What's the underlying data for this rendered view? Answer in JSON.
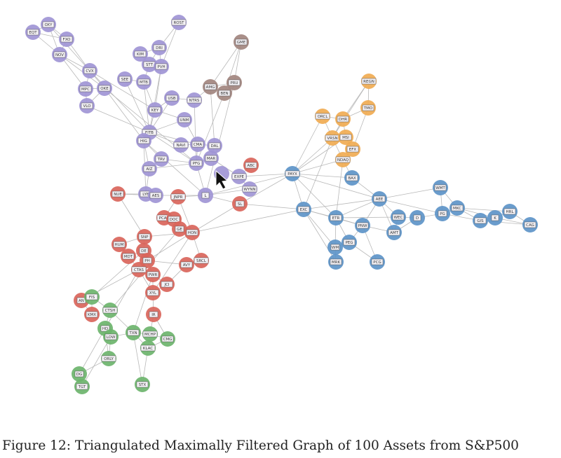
{
  "caption": "Figure 12: Triangulated Maximally Filtered Graph of 100 Assets from S&P500",
  "group_colors": {
    "purple": "#a095d5",
    "brown": "#a2857f",
    "red": "#d9655b",
    "green": "#6cb46c",
    "orange": "#f0ab52",
    "blue": "#5d94c8"
  },
  "edge_color": "#b8b8b8",
  "nodes": [
    {
      "label": "EQT",
      "group": "purple"
    },
    {
      "label": "OXY",
      "group": "purple"
    },
    {
      "label": "FXO",
      "group": "purple"
    },
    {
      "label": "NOV",
      "group": "purple"
    },
    {
      "label": "CVX",
      "group": "purple"
    },
    {
      "label": "MPC",
      "group": "purple"
    },
    {
      "label": "OKE",
      "group": "purple"
    },
    {
      "label": "VLO",
      "group": "purple"
    },
    {
      "label": "ROST",
      "group": "purple"
    },
    {
      "label": "DRI",
      "group": "purple"
    },
    {
      "label": "KIM",
      "group": "purple"
    },
    {
      "label": "STT",
      "group": "purple"
    },
    {
      "label": "PVH",
      "group": "purple"
    },
    {
      "label": "SEE",
      "group": "purple"
    },
    {
      "label": "MTB",
      "group": "purple"
    },
    {
      "label": "USB",
      "group": "purple"
    },
    {
      "label": "NTRS",
      "group": "purple"
    },
    {
      "label": "KEY",
      "group": "purple"
    },
    {
      "label": "UNM",
      "group": "purple"
    },
    {
      "label": "FITB",
      "group": "purple"
    },
    {
      "label": "HIG",
      "group": "purple"
    },
    {
      "label": "NAVI",
      "group": "purple"
    },
    {
      "label": "CMA",
      "group": "purple"
    },
    {
      "label": "DAL",
      "group": "purple"
    },
    {
      "label": "TRV",
      "group": "purple"
    },
    {
      "label": "MAR",
      "group": "purple"
    },
    {
      "label": "PFG",
      "group": "purple"
    },
    {
      "label": "AIZ",
      "group": "purple"
    },
    {
      "label": "EXPE",
      "group": "purple"
    },
    {
      "label": "WYNN",
      "group": "purple"
    },
    {
      "label": "L",
      "group": "purple"
    },
    {
      "label": "LYB",
      "group": "purple"
    },
    {
      "label": "AES",
      "group": "purple"
    },
    {
      "label": "",
      "group": "purple"
    },
    {
      "label": "GME",
      "group": "brown"
    },
    {
      "label": "AMG",
      "group": "brown"
    },
    {
      "label": "PRU",
      "group": "brown"
    },
    {
      "label": "BEN",
      "group": "brown"
    },
    {
      "label": "ABC",
      "group": "red"
    },
    {
      "label": "SL",
      "group": "red"
    },
    {
      "label": "NUE",
      "group": "red"
    },
    {
      "label": "JNPR",
      "group": "red"
    },
    {
      "label": "PCAR",
      "group": "red"
    },
    {
      "label": "DOC",
      "group": "red"
    },
    {
      "label": "GE",
      "group": "red"
    },
    {
      "label": "HON",
      "group": "red"
    },
    {
      "label": "SNP",
      "group": "red"
    },
    {
      "label": "HUM",
      "group": "red"
    },
    {
      "label": "DE",
      "group": "red"
    },
    {
      "label": "MDT",
      "group": "red"
    },
    {
      "label": "PH",
      "group": "red"
    },
    {
      "label": "CTAS",
      "group": "red"
    },
    {
      "label": "PWR",
      "group": "red"
    },
    {
      "label": "AVY",
      "group": "red"
    },
    {
      "label": "SRCL",
      "group": "red"
    },
    {
      "label": "JCI",
      "group": "red"
    },
    {
      "label": "XYL",
      "group": "red"
    },
    {
      "label": "IR",
      "group": "red"
    },
    {
      "label": "AN",
      "group": "red"
    },
    {
      "label": "KMX",
      "group": "red"
    },
    {
      "label": "FIS",
      "group": "green"
    },
    {
      "label": "CTSH",
      "group": "green"
    },
    {
      "label": "HD",
      "group": "green"
    },
    {
      "label": "LOW",
      "group": "green"
    },
    {
      "label": "TXN",
      "group": "green"
    },
    {
      "label": "MCHP",
      "group": "green"
    },
    {
      "label": "KLAC",
      "group": "green"
    },
    {
      "label": "CMG",
      "group": "green"
    },
    {
      "label": "ORLY",
      "group": "green"
    },
    {
      "label": "DG",
      "group": "green"
    },
    {
      "label": "TGT",
      "group": "green"
    },
    {
      "label": "STX",
      "group": "green"
    },
    {
      "label": "REGN",
      "group": "orange"
    },
    {
      "label": "TMO",
      "group": "orange"
    },
    {
      "label": "ORCL",
      "group": "orange"
    },
    {
      "label": "DHR",
      "group": "orange"
    },
    {
      "label": "VRSN",
      "group": "orange"
    },
    {
      "label": "MSI",
      "group": "orange"
    },
    {
      "label": "EFX",
      "group": "orange"
    },
    {
      "label": "NDAQ",
      "group": "orange"
    },
    {
      "label": "PAYX",
      "group": "blue"
    },
    {
      "label": "BAX",
      "group": "blue"
    },
    {
      "label": "AEE",
      "group": "blue"
    },
    {
      "label": "EXC",
      "group": "blue"
    },
    {
      "label": "ETR",
      "group": "blue"
    },
    {
      "label": "PNW",
      "group": "blue"
    },
    {
      "label": "WEC",
      "group": "blue"
    },
    {
      "label": "D",
      "group": "blue"
    },
    {
      "label": "AMT",
      "group": "blue"
    },
    {
      "label": "PEG",
      "group": "blue"
    },
    {
      "label": "WM",
      "group": "blue"
    },
    {
      "label": "MRK",
      "group": "blue"
    },
    {
      "label": "PCG",
      "group": "blue"
    },
    {
      "label": "WMT",
      "group": "blue"
    },
    {
      "label": "PG",
      "group": "blue"
    },
    {
      "label": "MKC",
      "group": "blue"
    },
    {
      "label": "GIS",
      "group": "blue"
    },
    {
      "label": "K",
      "group": "blue"
    },
    {
      "label": "HRL",
      "group": "blue"
    },
    {
      "label": "CAG",
      "group": "blue"
    }
  ],
  "edges": [
    [
      "EQT",
      "OXY"
    ],
    [
      "EQT",
      "FXO"
    ],
    [
      "EQT",
      "NOV"
    ],
    [
      "OXY",
      "FXO"
    ],
    [
      "OXY",
      "NOV"
    ],
    [
      "OXY",
      "CVX"
    ],
    [
      "FXO",
      "NOV"
    ],
    [
      "FXO",
      "CVX"
    ],
    [
      "NOV",
      "CVX"
    ],
    [
      "NOV",
      "MPC"
    ],
    [
      "NOV",
      "OKE"
    ],
    [
      "CVX",
      "MPC"
    ],
    [
      "CVX",
      "OKE"
    ],
    [
      "CVX",
      "FITB"
    ],
    [
      "MPC",
      "OKE"
    ],
    [
      "MPC",
      "VLO"
    ],
    [
      "OKE",
      "VLO"
    ],
    [
      "OKE",
      "HIG"
    ],
    [
      "OKE",
      "PFG"
    ],
    [
      "VLO",
      "FITB"
    ],
    [
      "CVX",
      "KEY"
    ],
    [
      "ROST",
      "DRI"
    ],
    [
      "ROST",
      "PVH"
    ],
    [
      "DRI",
      "KIM"
    ],
    [
      "DRI",
      "STT"
    ],
    [
      "DRI",
      "PVH"
    ],
    [
      "KIM",
      "STT"
    ],
    [
      "STT",
      "PVH"
    ],
    [
      "STT",
      "MTB"
    ],
    [
      "PVH",
      "KEY"
    ],
    [
      "PVH",
      "FITB"
    ],
    [
      "SEE",
      "MTB"
    ],
    [
      "SEE",
      "FITB"
    ],
    [
      "MTB",
      "KEY"
    ],
    [
      "MTB",
      "FITB"
    ],
    [
      "USB",
      "KEY"
    ],
    [
      "USB",
      "NTRS"
    ],
    [
      "USB",
      "FITB"
    ],
    [
      "NTRS",
      "AMG"
    ],
    [
      "NTRS",
      "PFG"
    ],
    [
      "KEY",
      "FITB"
    ],
    [
      "KEY",
      "UNM"
    ],
    [
      "UNM",
      "CMA"
    ],
    [
      "UNM",
      "FITB"
    ],
    [
      "FITB",
      "HIG"
    ],
    [
      "FITB",
      "NAVI"
    ],
    [
      "FITB",
      "CMA"
    ],
    [
      "FITB",
      "PFG"
    ],
    [
      "HIG",
      "TRV"
    ],
    [
      "HIG",
      "AIZ"
    ],
    [
      "HIG",
      "L"
    ],
    [
      "HIG",
      "LYB"
    ],
    [
      "NAVI",
      "CMA"
    ],
    [
      "CMA",
      "DAL"
    ],
    [
      "CMA",
      "PFG"
    ],
    [
      "DAL",
      "MAR"
    ],
    [
      "MAR",
      "PFG"
    ],
    [
      "MAR",
      "EXPE"
    ],
    [
      "PFG",
      "L"
    ],
    [
      "PFG",
      "TRV"
    ],
    [
      "PFG",
      "AIZ"
    ],
    [
      "TRV",
      "AIZ"
    ],
    [
      "EXPE",
      "WYNN"
    ],
    [
      "EXPE",
      "ABC"
    ],
    [
      "L",
      "WYNN"
    ],
    [
      "L",
      "SL"
    ],
    [
      "L",
      "JNPR"
    ],
    [
      "L",
      "AES"
    ],
    [
      "LYB",
      "AES"
    ],
    [
      "LYB",
      "NUE"
    ],
    [
      "AIZ",
      "LYB"
    ],
    [
      "GME",
      "AMG"
    ],
    [
      "GME",
      "PRU"
    ],
    [
      "GME",
      "BEN"
    ],
    [
      "AMG",
      "PRU"
    ],
    [
      "AMG",
      "BEN"
    ],
    [
      "PRU",
      "BEN"
    ],
    [
      "BEN",
      "PFG"
    ],
    [
      "AMG",
      "DAL"
    ],
    [
      "PRU",
      "L"
    ],
    [
      "NUE",
      "SNP"
    ],
    [
      "NUE",
      "AES"
    ],
    [
      "JNPR",
      "PCAR"
    ],
    [
      "JNPR",
      "HON"
    ],
    [
      "PCAR",
      "DOC"
    ],
    [
      "PCAR",
      "GE"
    ],
    [
      "DOC",
      "GE"
    ],
    [
      "GE",
      "HON"
    ],
    [
      "DOC",
      "HON"
    ],
    [
      "HON",
      "SL"
    ],
    [
      "SNP",
      "DE"
    ],
    [
      "SNP",
      "HUM"
    ],
    [
      "SNP",
      "HON"
    ],
    [
      "HUM",
      "MDT"
    ],
    [
      "DE",
      "MDT"
    ],
    [
      "DE",
      "PH"
    ],
    [
      "MDT",
      "CTAS"
    ],
    [
      "PH",
      "CTAS"
    ],
    [
      "PH",
      "PWR"
    ],
    [
      "PH",
      "HON"
    ],
    [
      "CTAS",
      "PWR"
    ],
    [
      "PWR",
      "JCI"
    ],
    [
      "PWR",
      "XYL"
    ],
    [
      "AVY",
      "SRCL"
    ],
    [
      "AVY",
      "PH"
    ],
    [
      "SRCL",
      "HON"
    ],
    [
      "JCI",
      "XYL"
    ],
    [
      "XYL",
      "IR"
    ],
    [
      "JCI",
      "AVY"
    ],
    [
      "CTAS",
      "XYL"
    ],
    [
      "CTAS",
      "AN"
    ],
    [
      "AN",
      "FIS"
    ],
    [
      "AN",
      "KMX"
    ],
    [
      "KMX",
      "FIS"
    ],
    [
      "FIS",
      "CTSH"
    ],
    [
      "CTSH",
      "HD"
    ],
    [
      "CTSH",
      "TXN"
    ],
    [
      "HD",
      "LOW"
    ],
    [
      "HD",
      "ORLY"
    ],
    [
      "LOW",
      "ORLY"
    ],
    [
      "LOW",
      "TXN"
    ],
    [
      "TXN",
      "MCHP"
    ],
    [
      "TXN",
      "KLAC"
    ],
    [
      "MCHP",
      "KLAC"
    ],
    [
      "MCHP",
      "CMG"
    ],
    [
      "KLAC",
      "CMG"
    ],
    [
      "KLAC",
      "STX"
    ],
    [
      "TXN",
      "STX"
    ],
    [
      "ORLY",
      "DG"
    ],
    [
      "DG",
      "TGT"
    ],
    [
      "HD",
      "DG"
    ],
    [
      "LOW",
      "TGT"
    ],
    [
      "IR",
      "MCHP"
    ],
    [
      "IR",
      "CMG"
    ],
    [
      "CTAS",
      "HD"
    ],
    [
      "PWR",
      "TXN"
    ],
    [
      "DE",
      "FIS"
    ],
    [
      "GE",
      "CTSH"
    ],
    [
      "HON",
      "XYL"
    ],
    [
      "REGN",
      "TMO"
    ],
    [
      "REGN",
      "DHR"
    ],
    [
      "REGN",
      "VRSN"
    ],
    [
      "TMO",
      "DHR"
    ],
    [
      "TMO",
      "EFX"
    ],
    [
      "ORCL",
      "DHR"
    ],
    [
      "ORCL",
      "VRSN"
    ],
    [
      "DHR",
      "VRSN"
    ],
    [
      "DHR",
      "MSI"
    ],
    [
      "VRSN",
      "MSI"
    ],
    [
      "MSI",
      "EFX"
    ],
    [
      "EFX",
      "NDAQ"
    ],
    [
      "VRSN",
      "NDAQ"
    ],
    [
      "ORCL",
      "PAYX"
    ],
    [
      "VRSN",
      "PAYX"
    ],
    [
      "NDAQ",
      "PAYX"
    ],
    [
      "NDAQ",
      "BAX"
    ],
    [
      "MSI",
      "PAYX"
    ],
    [
      "VRSN",
      "EXC"
    ],
    [
      "NDAQ",
      "ETR"
    ],
    [
      "PAYX",
      "BAX"
    ],
    [
      "PAYX",
      "EXC"
    ],
    [
      "PAYX",
      "AEE"
    ],
    [
      "PAYX",
      "ETR"
    ],
    [
      "PAYX",
      "SL"
    ],
    [
      "PAYX",
      "L"
    ],
    [
      "PAYX",
      "EXPE"
    ],
    [
      "BAX",
      "AEE"
    ],
    [
      "EXC",
      "AEE"
    ],
    [
      "EXC",
      "ETR"
    ],
    [
      "EXC",
      "PNW"
    ],
    [
      "EXC",
      "WM"
    ],
    [
      "EXC",
      "MRK"
    ],
    [
      "EXC",
      "HON"
    ],
    [
      "EXC",
      "SL"
    ],
    [
      "ETR",
      "PNW"
    ],
    [
      "ETR",
      "WM"
    ],
    [
      "ETR",
      "PEG"
    ],
    [
      "ETR",
      "WEC"
    ],
    [
      "ETR",
      "AEE"
    ],
    [
      "PNW",
      "PEG"
    ],
    [
      "PNW",
      "AMT"
    ],
    [
      "PNW",
      "PCG"
    ],
    [
      "PNW",
      "AEE"
    ],
    [
      "PEG",
      "WM"
    ],
    [
      "PEG",
      "PCG"
    ],
    [
      "WM",
      "MRK"
    ],
    [
      "AEE",
      "WEC"
    ],
    [
      "AEE",
      "AMT"
    ],
    [
      "AEE",
      "WMT"
    ],
    [
      "AEE",
      "PG"
    ],
    [
      "WEC",
      "D"
    ],
    [
      "WEC",
      "AMT"
    ],
    [
      "D",
      "AMT"
    ],
    [
      "D",
      "PG"
    ],
    [
      "WMT",
      "PG"
    ],
    [
      "WMT",
      "MKC"
    ],
    [
      "PG",
      "MKC"
    ],
    [
      "PG",
      "GIS"
    ],
    [
      "MKC",
      "GIS"
    ],
    [
      "MKC",
      "K"
    ],
    [
      "GIS",
      "K"
    ],
    [
      "K",
      "HRL"
    ],
    [
      "HRL",
      "CAG"
    ],
    [
      "GIS",
      "CAG"
    ],
    [
      "K",
      "CAG"
    ],
    [
      "MKC",
      "HRL"
    ]
  ]
}
